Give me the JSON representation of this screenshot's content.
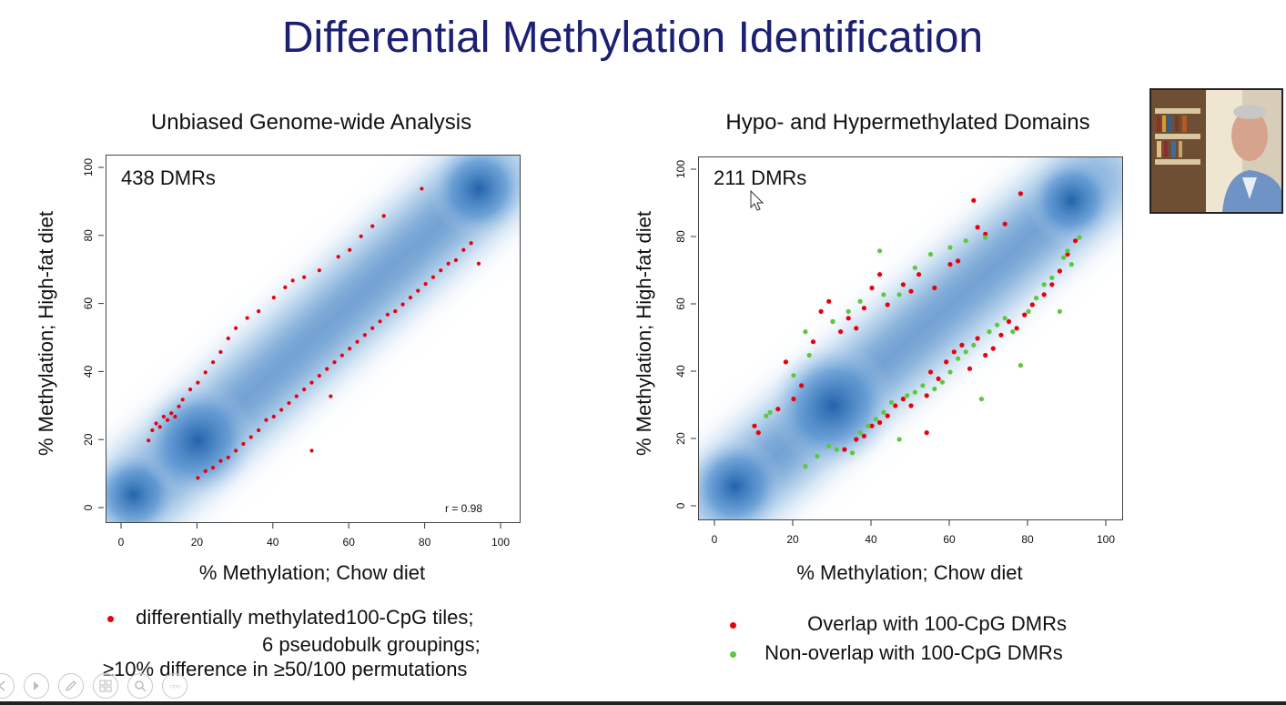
{
  "slide": {
    "title": "Differential Methylation Identification"
  },
  "left_panel": {
    "title": "Unbiased Genome-wide Analysis",
    "dmr_count_label": "438 DMRs",
    "correlation_label": "r = 0.98",
    "xlabel": "% Methylation; Chow diet",
    "ylabel": "% Methylation; High-fat diet",
    "legend": {
      "line1": "differentially methylated100-CpG tiles;",
      "line2": "6 pseudobulk groupings;",
      "line3": "≥10% difference in ≥50/100 permutations",
      "bullet_color": "#e8000b"
    }
  },
  "right_panel": {
    "title": "Hypo- and Hypermethylated Domains",
    "dmr_count_label": "211 DMRs",
    "xlabel": "% Methylation; Chow diet",
    "ylabel": "% Methylation; High-fat diet",
    "legend": {
      "overlap_label": "Overlap with 100-CpG DMRs",
      "nonoverlap_label": "Non-overlap with 100-CpG DMRs",
      "overlap_color": "#e8000b",
      "nonoverlap_color": "#5cc83c"
    }
  },
  "chart_data": [
    {
      "type": "scatter",
      "title": "Unbiased Genome-wide Analysis",
      "xlabel": "% Methylation; Chow diet",
      "ylabel": "% Methylation; High-fat diet",
      "xlim": [
        0,
        100
      ],
      "ylim": [
        0,
        100
      ],
      "xticks": [
        0,
        20,
        40,
        60,
        80,
        100
      ],
      "yticks": [
        0,
        20,
        40,
        60,
        80,
        100
      ],
      "background": "density",
      "annotations": [
        "438 DMRs",
        "r = 0.98"
      ],
      "series": [
        {
          "name": "differentially methylated100-CpG tiles",
          "color": "#e8000b",
          "points": [
            [
              7,
              20
            ],
            [
              8,
              23
            ],
            [
              9,
              25
            ],
            [
              10,
              24
            ],
            [
              11,
              27
            ],
            [
              12,
              26
            ],
            [
              13,
              28
            ],
            [
              14,
              27
            ],
            [
              15,
              30
            ],
            [
              16,
              32
            ],
            [
              18,
              35
            ],
            [
              20,
              37
            ],
            [
              22,
              40
            ],
            [
              24,
              43
            ],
            [
              26,
              46
            ],
            [
              28,
              50
            ],
            [
              30,
              53
            ],
            [
              33,
              56
            ],
            [
              36,
              58
            ],
            [
              40,
              62
            ],
            [
              43,
              65
            ],
            [
              45,
              67
            ],
            [
              48,
              68
            ],
            [
              52,
              70
            ],
            [
              57,
              74
            ],
            [
              60,
              76
            ],
            [
              63,
              80
            ],
            [
              66,
              83
            ],
            [
              69,
              86
            ],
            [
              79,
              94
            ],
            [
              20,
              9
            ],
            [
              22,
              11
            ],
            [
              24,
              12
            ],
            [
              26,
              14
            ],
            [
              28,
              15
            ],
            [
              30,
              17
            ],
            [
              32,
              19
            ],
            [
              34,
              21
            ],
            [
              36,
              23
            ],
            [
              38,
              26
            ],
            [
              40,
              27
            ],
            [
              42,
              29
            ],
            [
              44,
              31
            ],
            [
              46,
              33
            ],
            [
              48,
              35
            ],
            [
              50,
              37
            ],
            [
              52,
              39
            ],
            [
              54,
              41
            ],
            [
              56,
              43
            ],
            [
              58,
              45
            ],
            [
              60,
              47
            ],
            [
              62,
              49
            ],
            [
              64,
              51
            ],
            [
              66,
              53
            ],
            [
              68,
              55
            ],
            [
              70,
              57
            ],
            [
              72,
              58
            ],
            [
              74,
              60
            ],
            [
              76,
              62
            ],
            [
              78,
              64
            ],
            [
              80,
              66
            ],
            [
              82,
              68
            ],
            [
              84,
              70
            ],
            [
              86,
              72
            ],
            [
              88,
              73
            ],
            [
              90,
              76
            ],
            [
              92,
              78
            ],
            [
              94,
              72
            ],
            [
              50,
              17
            ],
            [
              55,
              33
            ]
          ]
        }
      ]
    },
    {
      "type": "scatter",
      "title": "Hypo- and Hypermethylated Domains",
      "xlabel": "% Methylation; Chow diet",
      "ylabel": "% Methylation; High-fat diet",
      "xlim": [
        0,
        100
      ],
      "ylim": [
        0,
        100
      ],
      "xticks": [
        0,
        20,
        40,
        60,
        80,
        100
      ],
      "yticks": [
        0,
        20,
        40,
        60,
        80,
        100
      ],
      "background": "density",
      "annotations": [
        "211 DMRs"
      ],
      "series": [
        {
          "name": "Overlap with 100-CpG DMRs",
          "color": "#e8000b",
          "points": [
            [
              10,
              24
            ],
            [
              11,
              22
            ],
            [
              16,
              29
            ],
            [
              18,
              43
            ],
            [
              20,
              32
            ],
            [
              22,
              36
            ],
            [
              25,
              49
            ],
            [
              27,
              58
            ],
            [
              29,
              61
            ],
            [
              30,
              55
            ],
            [
              32,
              52
            ],
            [
              34,
              56
            ],
            [
              36,
              53
            ],
            [
              38,
              59
            ],
            [
              40,
              65
            ],
            [
              42,
              69
            ],
            [
              44,
              60
            ],
            [
              48,
              66
            ],
            [
              50,
              64
            ],
            [
              52,
              69
            ],
            [
              56,
              65
            ],
            [
              60,
              72
            ],
            [
              62,
              73
            ],
            [
              66,
              91
            ],
            [
              67,
              83
            ],
            [
              69,
              81
            ],
            [
              74,
              84
            ],
            [
              78,
              93
            ],
            [
              33,
              17
            ],
            [
              36,
              20
            ],
            [
              38,
              21
            ],
            [
              40,
              24
            ],
            [
              42,
              25
            ],
            [
              44,
              27
            ],
            [
              46,
              30
            ],
            [
              48,
              32
            ],
            [
              50,
              30
            ],
            [
              54,
              22
            ],
            [
              54,
              33
            ],
            [
              55,
              40
            ],
            [
              57,
              38
            ],
            [
              59,
              43
            ],
            [
              61,
              46
            ],
            [
              63,
              48
            ],
            [
              65,
              41
            ],
            [
              67,
              50
            ],
            [
              69,
              45
            ],
            [
              71,
              47
            ],
            [
              73,
              51
            ],
            [
              75,
              55
            ],
            [
              77,
              53
            ],
            [
              79,
              57
            ],
            [
              81,
              60
            ],
            [
              84,
              63
            ],
            [
              86,
              66
            ],
            [
              88,
              70
            ],
            [
              90,
              75
            ],
            [
              92,
              79
            ]
          ]
        },
        {
          "name": "Non-overlap with 100-CpG DMRs",
          "color": "#5cc83c",
          "points": [
            [
              13,
              27
            ],
            [
              14,
              28
            ],
            [
              20,
              39
            ],
            [
              23,
              52
            ],
            [
              24,
              45
            ],
            [
              30,
              55
            ],
            [
              34,
              58
            ],
            [
              37,
              61
            ],
            [
              42,
              76
            ],
            [
              43,
              63
            ],
            [
              47,
              63
            ],
            [
              51,
              71
            ],
            [
              55,
              75
            ],
            [
              60,
              77
            ],
            [
              64,
              79
            ],
            [
              69,
              80
            ],
            [
              23,
              12
            ],
            [
              26,
              15
            ],
            [
              29,
              18
            ],
            [
              31,
              17
            ],
            [
              35,
              16
            ],
            [
              37,
              22
            ],
            [
              39,
              24
            ],
            [
              41,
              26
            ],
            [
              43,
              28
            ],
            [
              45,
              31
            ],
            [
              47,
              20
            ],
            [
              49,
              33
            ],
            [
              51,
              34
            ],
            [
              53,
              36
            ],
            [
              56,
              35
            ],
            [
              58,
              37
            ],
            [
              60,
              40
            ],
            [
              62,
              44
            ],
            [
              64,
              46
            ],
            [
              66,
              48
            ],
            [
              68,
              32
            ],
            [
              70,
              52
            ],
            [
              72,
              54
            ],
            [
              74,
              56
            ],
            [
              76,
              52
            ],
            [
              78,
              42
            ],
            [
              80,
              58
            ],
            [
              82,
              62
            ],
            [
              84,
              66
            ],
            [
              86,
              68
            ],
            [
              88,
              58
            ],
            [
              89,
              74
            ],
            [
              90,
              76
            ],
            [
              91,
              72
            ],
            [
              93,
              80
            ]
          ]
        }
      ]
    }
  ],
  "presenter_video": {
    "label": "presenter webcam"
  },
  "toolbar": {
    "buttons": [
      "previous",
      "next",
      "pen",
      "slides",
      "zoom",
      "more"
    ],
    "more_label": "○○○"
  }
}
